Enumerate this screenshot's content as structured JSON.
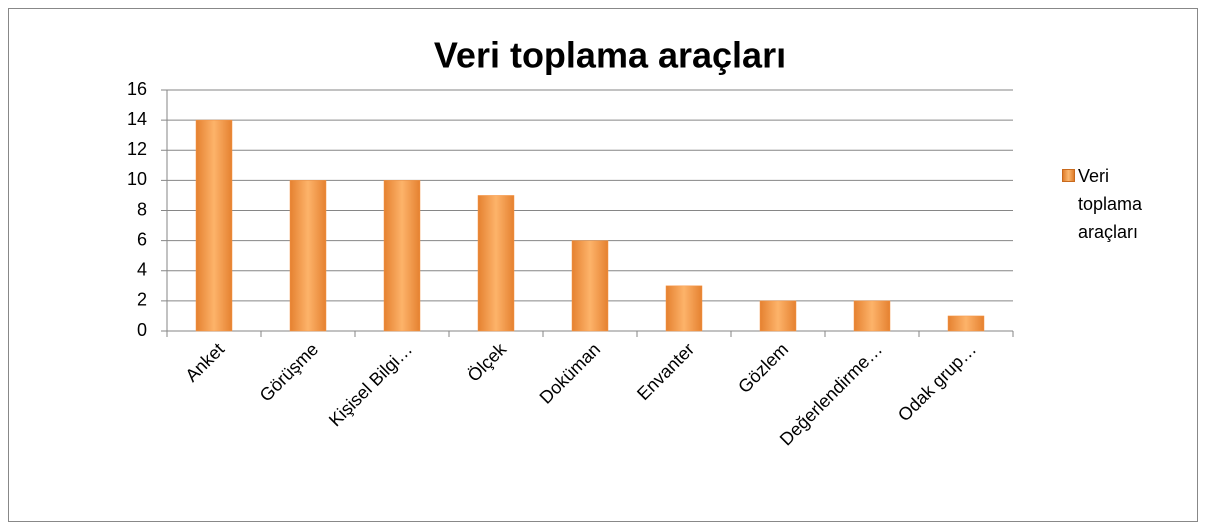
{
  "chart_data": {
    "type": "bar",
    "title": "Veri toplama araçları",
    "categories": [
      "Anket",
      "Görüşme",
      "Kişisel Bilgi…",
      "Ölçek",
      "Doküman",
      "Envanter",
      "Gözlem",
      "Değerlendirme…",
      "Odak grup…"
    ],
    "series": [
      {
        "name": "Veri toplama araçları",
        "color": "#f79646",
        "values": [
          14,
          10,
          10,
          9,
          6,
          3,
          2,
          2,
          1
        ]
      }
    ],
    "ylim": [
      0,
      16
    ],
    "yticks": [
      0,
      2,
      4,
      6,
      8,
      10,
      12,
      14,
      16
    ],
    "grid": true,
    "legend": "right"
  }
}
